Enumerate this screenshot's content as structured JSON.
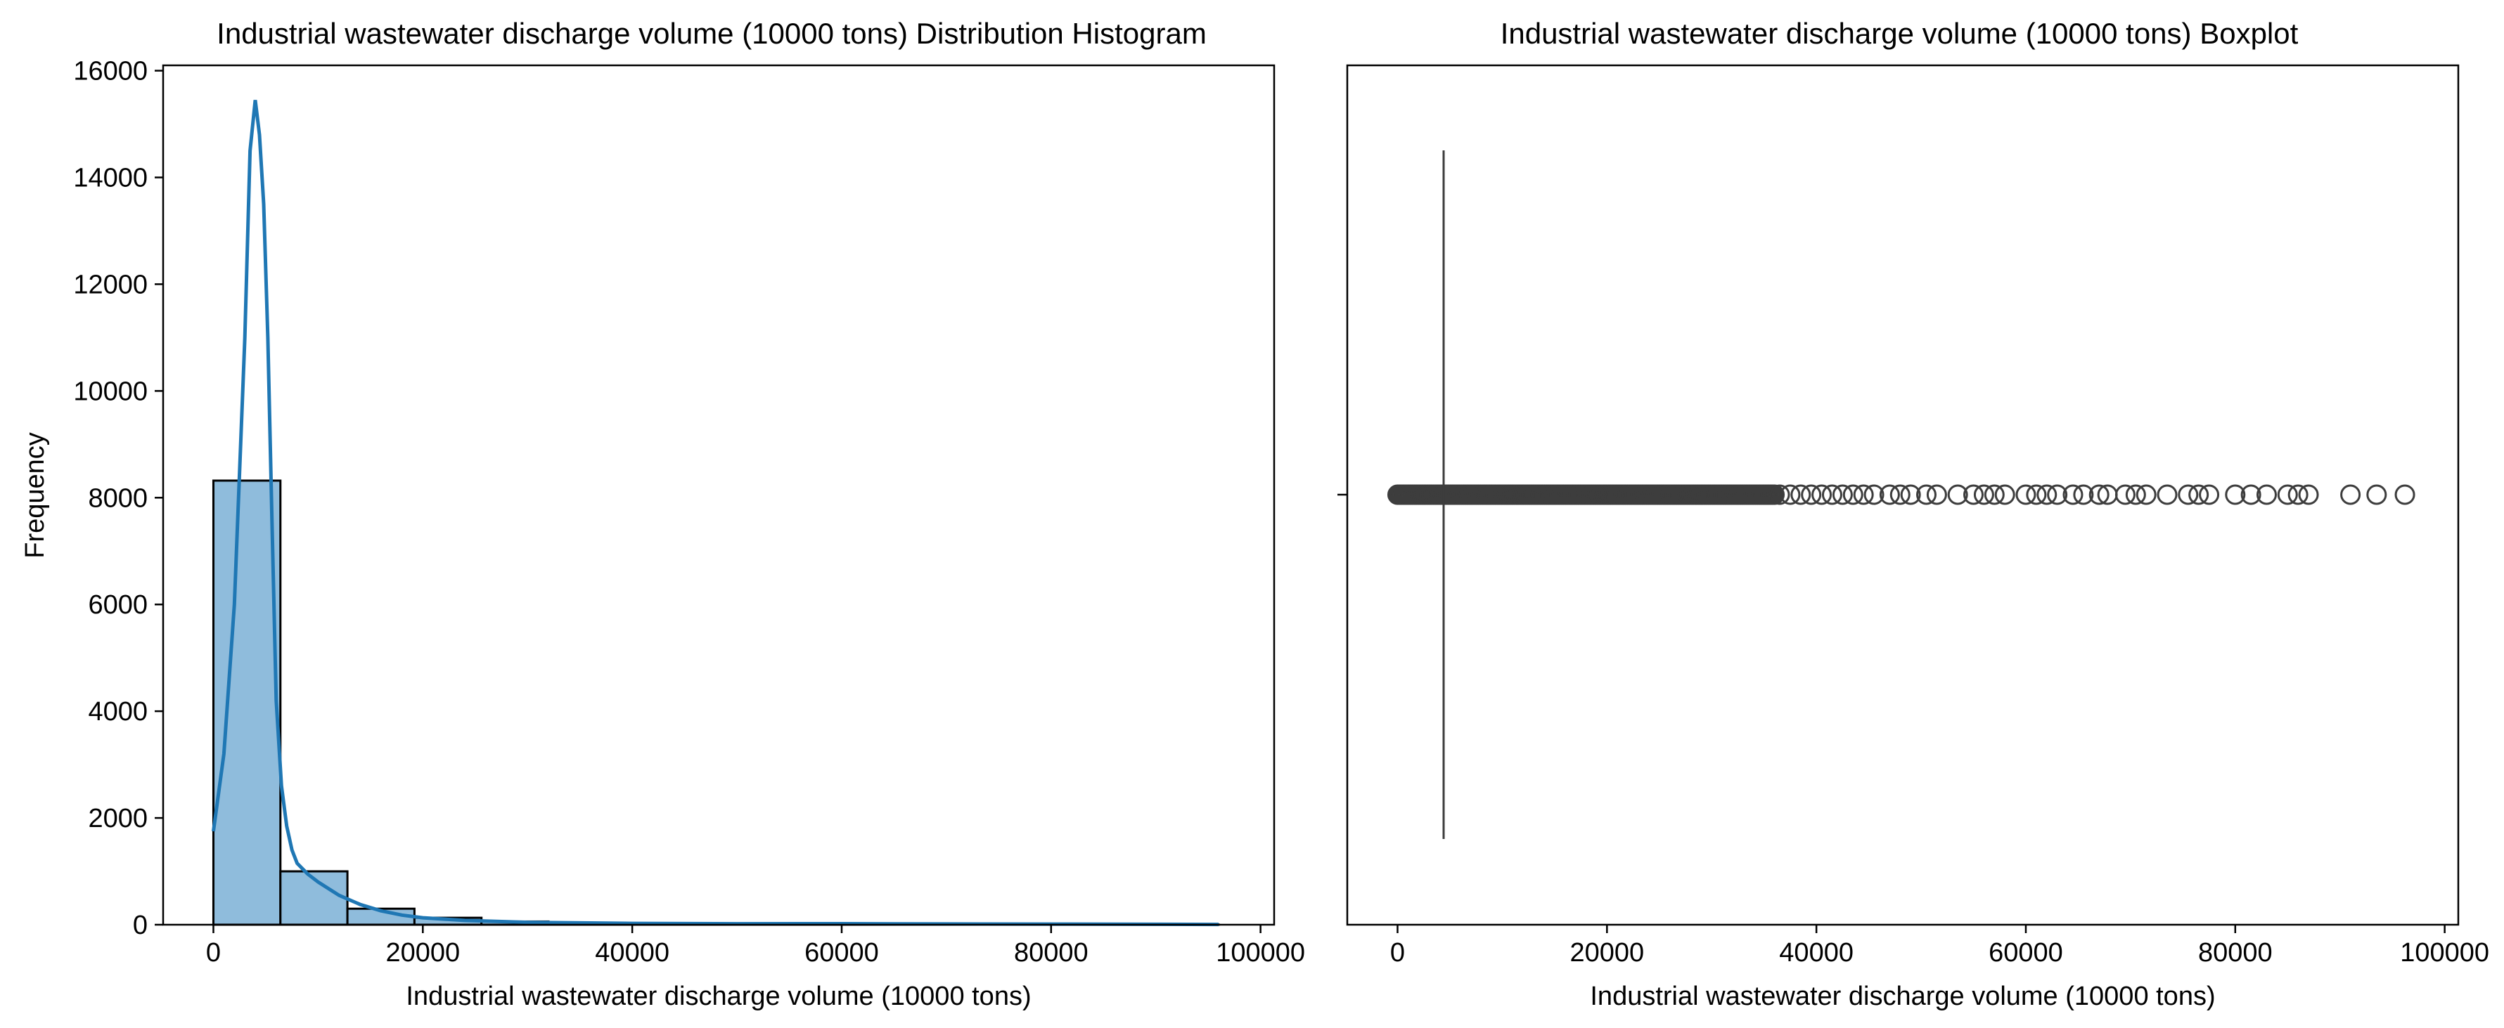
{
  "chart_data": [
    {
      "type": "bar",
      "subtype": "histogram",
      "title": "Industrial wastewater discharge volume (10000 tons) Distribution Histogram",
      "xlabel": "Industrial wastewater discharge volume (10000 tons)",
      "ylabel": "Frequency",
      "xlim": [
        -4800,
        101300
      ],
      "ylim": [
        0,
        16100
      ],
      "xticks": [
        0,
        20000,
        40000,
        60000,
        80000,
        100000
      ],
      "yticks": [
        0,
        2000,
        4000,
        6000,
        8000,
        10000,
        12000,
        14000,
        16000
      ],
      "bins": [
        {
          "x0": 0,
          "x1": 6400,
          "count": 8320
        },
        {
          "x0": 6400,
          "x1": 12800,
          "count": 1000
        },
        {
          "x0": 12800,
          "x1": 19200,
          "count": 300
        },
        {
          "x0": 19200,
          "x1": 25600,
          "count": 130
        },
        {
          "x0": 25600,
          "x1": 32000,
          "count": 60
        },
        {
          "x0": 32000,
          "x1": 38400,
          "count": 30
        },
        {
          "x0": 38400,
          "x1": 44800,
          "count": 20
        },
        {
          "x0": 44800,
          "x1": 51200,
          "count": 15
        },
        {
          "x0": 51200,
          "x1": 57600,
          "count": 10
        },
        {
          "x0": 57600,
          "x1": 64000,
          "count": 12
        },
        {
          "x0": 64000,
          "x1": 70400,
          "count": 10
        },
        {
          "x0": 70400,
          "x1": 76800,
          "count": 8
        },
        {
          "x0": 76800,
          "x1": 83200,
          "count": 6
        },
        {
          "x0": 83200,
          "x1": 89600,
          "count": 5
        },
        {
          "x0": 89600,
          "x1": 96000,
          "count": 3
        }
      ],
      "kde": {
        "x": [
          0,
          1000,
          2000,
          3000,
          3500,
          4000,
          4400,
          4800,
          5200,
          5600,
          6000,
          6500,
          7000,
          7500,
          8000,
          9000,
          10000,
          12000,
          14000,
          16000,
          18000,
          20000,
          24000,
          30000,
          40000,
          50000,
          60000,
          70000,
          80000,
          90000,
          96000
        ],
        "y": [
          1750,
          3200,
          6000,
          11000,
          14500,
          15450,
          14800,
          13500,
          11000,
          7500,
          4200,
          2600,
          1850,
          1400,
          1150,
          950,
          800,
          550,
          380,
          260,
          180,
          130,
          80,
          45,
          25,
          18,
          20,
          15,
          12,
          8,
          5
        ]
      },
      "colors": {
        "bar_fill": "#8fbcdc",
        "bar_edge": "#000000",
        "kde_line": "#1f77b4"
      },
      "grid": false
    },
    {
      "type": "boxplot",
      "title": "Industrial wastewater discharge volume (10000 tons) Boxplot",
      "xlabel": "Industrial wastewater discharge volume (10000 tons)",
      "ylabel": "",
      "xlim": [
        -4800,
        101300
      ],
      "xticks": [
        0,
        20000,
        40000,
        60000,
        80000,
        100000
      ],
      "median": 4400,
      "dense_outlier_range": [
        0,
        36000
      ],
      "outliers": [
        36500,
        37500,
        38500,
        39500,
        40500,
        41500,
        42500,
        43500,
        44500,
        45500,
        47000,
        48000,
        49000,
        50500,
        51500,
        53500,
        55000,
        56000,
        57000,
        58000,
        60000,
        61000,
        62000,
        63000,
        64500,
        65500,
        67000,
        67800,
        69500,
        70500,
        71500,
        73500,
        75500,
        76500,
        77500,
        80000,
        81500,
        83000,
        85000,
        86000,
        87000,
        91000,
        93500,
        96200
      ],
      "colors": {
        "marker_edge": "#3d3d3d",
        "line": "#3d3d3d"
      },
      "grid": false
    }
  ]
}
